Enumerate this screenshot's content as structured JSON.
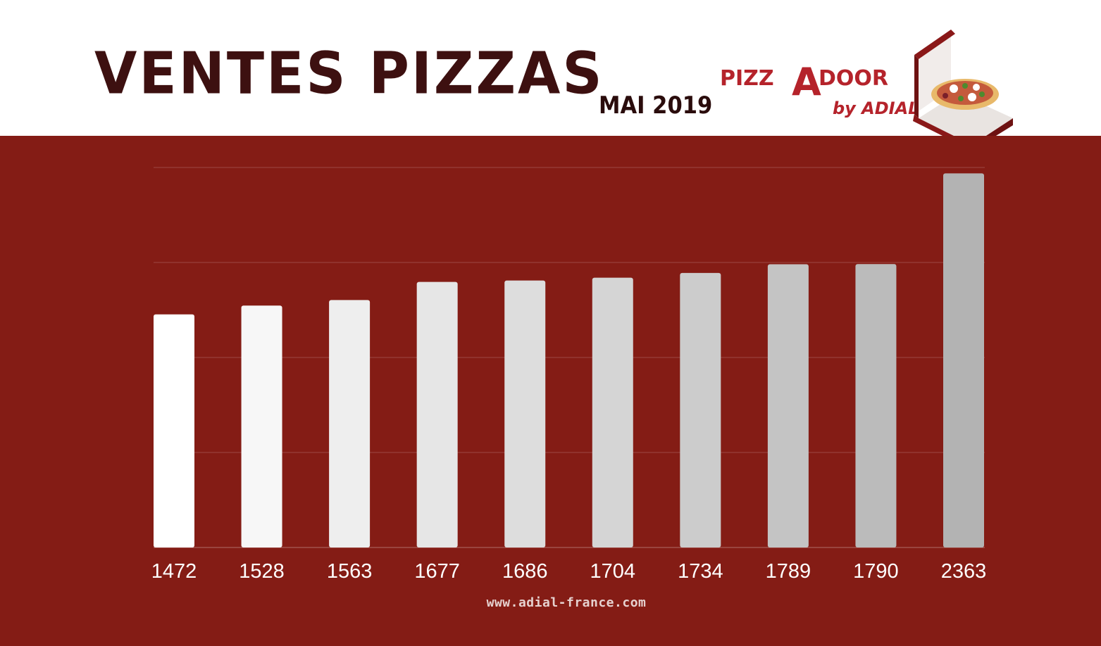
{
  "header": {
    "title": "VENTES PIZZAS",
    "subtitle": "MAI 2019"
  },
  "logo": {
    "text_pizz": "PIZZ",
    "text_a": "A",
    "text_door": "DOOR",
    "text_by": "by ADIAL",
    "icon": "pizza-box-icon"
  },
  "footer": {
    "website": "www.adial-france.com"
  },
  "colors": {
    "panel_background": "#841c15",
    "title": "#3d1010",
    "brand_red": "#b5232b",
    "bar_first": "#ffffff",
    "bar_last": "#b3b3b3"
  },
  "chart_data": {
    "type": "bar",
    "categories": [
      "1472",
      "1528",
      "1563",
      "1677",
      "1686",
      "1704",
      "1734",
      "1789",
      "1790",
      "2363"
    ],
    "values": [
      1472,
      1528,
      1563,
      1677,
      1686,
      1704,
      1734,
      1789,
      1790,
      2363
    ],
    "title": "VENTES PIZZAS",
    "subtitle": "MAI 2019",
    "xlabel": "",
    "ylabel": "",
    "ylim": [
      0,
      2400
    ],
    "y_gridlines": [
      0,
      600,
      1200,
      1800,
      2400
    ],
    "grid": true,
    "legend": "none",
    "bar_color_gradient": [
      "#ffffff",
      "#b3b3b3"
    ]
  }
}
